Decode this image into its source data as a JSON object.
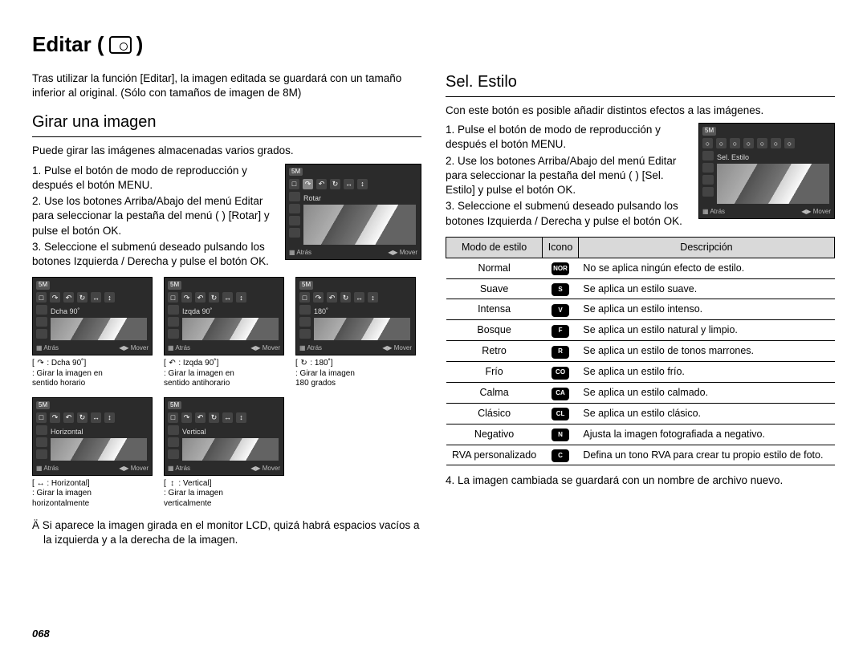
{
  "title": "Editar (",
  "title_close": ")",
  "intro": "Tras utilizar la función [Editar], la imagen editada se guardará con un tamaño inferior al original.  (Sólo con tamaños de imagen de 8M)",
  "left": {
    "heading": "Girar una imagen",
    "lead": "Puede girar las imágenes almacenadas varios grados.",
    "steps": [
      "1. Pulse el botón de modo de reproducción y después el botón MENU.",
      "2. Use los botones Arriba/Abajo del menú Editar para seleccionar la pestaña del menú (       ) [Rotar] y pulse el botón OK.",
      "3. Seleccione el submenú deseado pulsando los botones Izquierda / Derecha y pulse el botón OK."
    ],
    "main_lcd": {
      "size": "5M",
      "label": "Rotar",
      "back": "Atrás",
      "move": "Mover"
    },
    "row1": [
      {
        "size": "5M",
        "label": "Dcha 90˚",
        "back": "Atrás",
        "move": "Mover",
        "cap_icon": "↷",
        "cap_title": ": Dcha 90˚]",
        "cap_lines": ": Girar la imagen en\n  sentido horario"
      },
      {
        "size": "5M",
        "label": "Izqda 90˚",
        "back": "Atrás",
        "move": "Mover",
        "cap_icon": "↶",
        "cap_title": ": Izqda 90˚]",
        "cap_lines": ": Girar la imagen en\n  sentido antihorario"
      },
      {
        "size": "5M",
        "label": "180˚",
        "back": "Atrás",
        "move": "Mover",
        "cap_icon": "↻",
        "cap_title": ": 180˚]",
        "cap_lines": ": Girar la imagen\n  180 grados"
      }
    ],
    "row2": [
      {
        "size": "5M",
        "label": "Horizontal",
        "back": "Atrás",
        "move": "Mover",
        "cap_icon": "↔",
        "cap_title": ": Horizontal]",
        "cap_lines": ": Girar la imagen\n  horizontalmente"
      },
      {
        "size": "5M",
        "label": "Vertical",
        "back": "Atrás",
        "move": "Mover",
        "cap_icon": "↕",
        "cap_title": ": Vertical]",
        "cap_lines": ": Girar la imagen\n  verticalmente"
      }
    ],
    "note": "Ä Si aparece la imagen girada en el monitor LCD, quizá habrá espacios vacíos a la izquierda y a la derecha de la imagen."
  },
  "right": {
    "heading": "Sel. Estilo",
    "lead": "Con este botón es posible añadir distintos efectos a las imágenes.",
    "steps": [
      "1. Pulse el botón de modo de reproducción y después el botón MENU.",
      "2. Use los botones Arriba/Abajo del menú Editar para seleccionar la pestaña del menú (       ) [Sel. Estilo] y pulse el botón OK.",
      "3. Seleccione el submenú deseado pulsando los botones Izquierda / Derecha y pulse el botón OK."
    ],
    "main_lcd": {
      "size": "5M",
      "label": "Sel. Estilo",
      "back": "Atrás",
      "move": "Mover"
    },
    "table": {
      "headers": [
        "Modo de estilo",
        "Icono",
        "Descripción"
      ],
      "rows": [
        {
          "mode": "Normal",
          "icon": "NOR",
          "desc": "No se aplica ningún efecto de estilo."
        },
        {
          "mode": "Suave",
          "icon": "S",
          "desc": "Se aplica un estilo suave."
        },
        {
          "mode": "Intensa",
          "icon": "V",
          "desc": "Se aplica un estilo intenso."
        },
        {
          "mode": "Bosque",
          "icon": "F",
          "desc": "Se aplica un estilo natural y limpio."
        },
        {
          "mode": "Retro",
          "icon": "R",
          "desc": "Se aplica un estilo de tonos marrones."
        },
        {
          "mode": "Frío",
          "icon": "CO",
          "desc": "Se aplica un estilo frío."
        },
        {
          "mode": "Calma",
          "icon": "CA",
          "desc": "Se aplica un estilo calmado."
        },
        {
          "mode": "Clásico",
          "icon": "CL",
          "desc": "Se aplica un estilo clásico."
        },
        {
          "mode": "Negativo",
          "icon": "N",
          "desc": "Ajusta la imagen fotografiada a negativo."
        },
        {
          "mode": "RVA personalizado",
          "icon": "C",
          "desc": "Defina un tono RVA para crear tu propio estilo de foto."
        }
      ]
    },
    "after": "4. La imagen cambiada se guardará con un nombre de archivo nuevo."
  },
  "page_num": "068",
  "colors": {
    "table_header_bg": "#d9d9d9",
    "lcd_bg": "#2b2b2b",
    "icon_bg": "#000000"
  }
}
